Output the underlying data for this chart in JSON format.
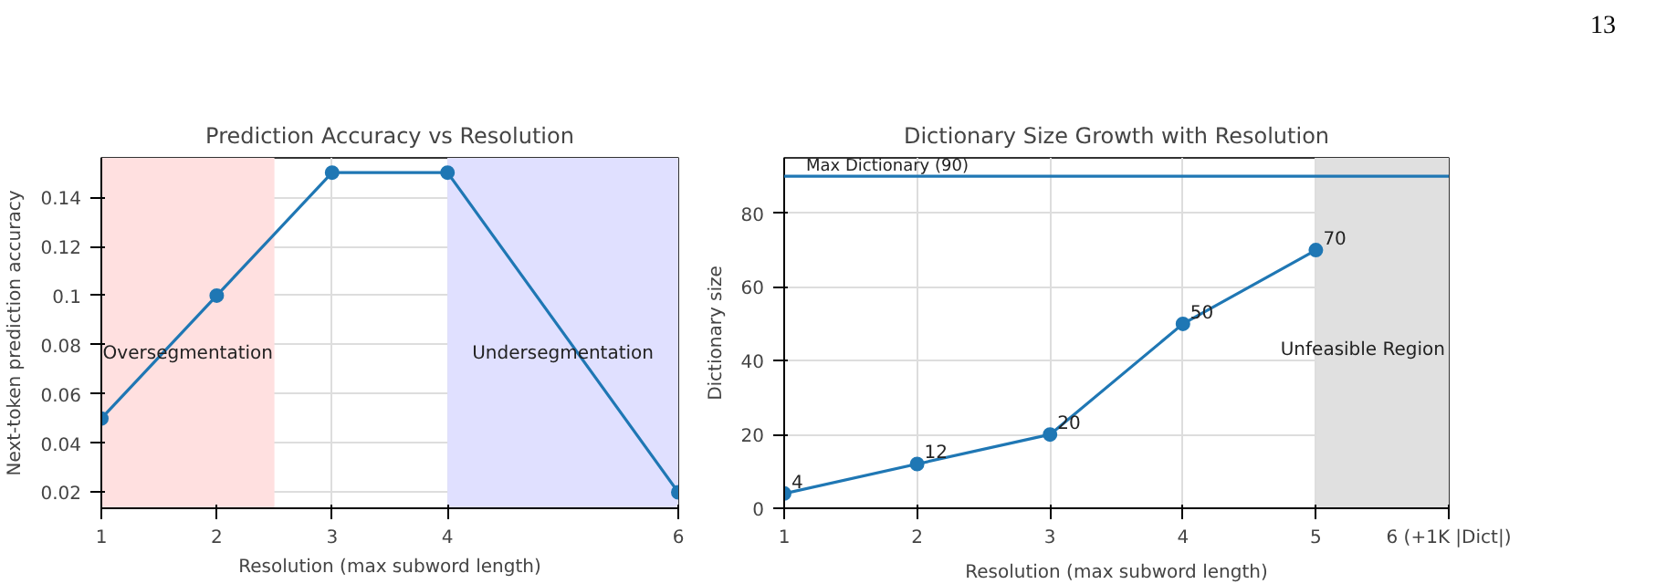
{
  "chart_data": [
    {
      "type": "line",
      "title": "Prediction Accuracy vs Resolution",
      "xlabel": "Resolution (max subword length)",
      "ylabel": "Next-token prediction accuracy",
      "x": [
        1,
        2,
        3,
        4,
        6
      ],
      "series": [
        {
          "color": "#1f77b4",
          "values": [
            0.05,
            0.1,
            0.15,
            0.15,
            0.02
          ]
        }
      ],
      "xlim": [
        1,
        6
      ],
      "xticks": [
        1,
        2,
        3,
        4,
        6
      ],
      "ylim": [
        0.0135,
        0.156
      ],
      "yticks": [
        0.02,
        0.04,
        0.06,
        0.08,
        0.1,
        0.12,
        0.14
      ],
      "bands": [
        {
          "axis": "x",
          "from": 1,
          "to": 2.5,
          "label": "Oversegmentation",
          "color": "#ffe0e0"
        },
        {
          "axis": "x",
          "from": 4,
          "to": 6,
          "label": "Undersegmentation",
          "color": "#e0e0ff"
        }
      ],
      "grid": true,
      "marker": "circle",
      "line_style": "solid",
      "annotations": [
        "13"
      ]
    },
    {
      "type": "line",
      "title": "Dictionary Size Growth with Resolution",
      "xlabel": "Resolution (max subword length)",
      "ylabel": "Dictionary size",
      "x": [
        1,
        2,
        3,
        4,
        5
      ],
      "series": [
        {
          "color": "#1f77b4",
          "values": [
            4,
            12,
            20,
            50,
            70
          ]
        }
      ],
      "xlim": [
        1,
        6
      ],
      "xticks": [
        1,
        2,
        3,
        4,
        5,
        {
          "value": 6,
          "label": "6 (+1K |Dict|)"
        }
      ],
      "ylim": [
        0,
        95
      ],
      "yticks": [
        0,
        20,
        40,
        60,
        80
      ],
      "ref_lines": [
        {
          "axis": "y",
          "value": 90,
          "label": "Max Dictionary (90)",
          "color": "#1f77b4",
          "line_style": "solid"
        }
      ],
      "bands": [
        {
          "axis": "x",
          "from": 5,
          "to": 6,
          "label": "Unfeasible Region",
          "color": "#e0e0e0"
        }
      ],
      "data_labels": true,
      "grid": true,
      "marker": "circle",
      "line_style": "solid"
    }
  ]
}
